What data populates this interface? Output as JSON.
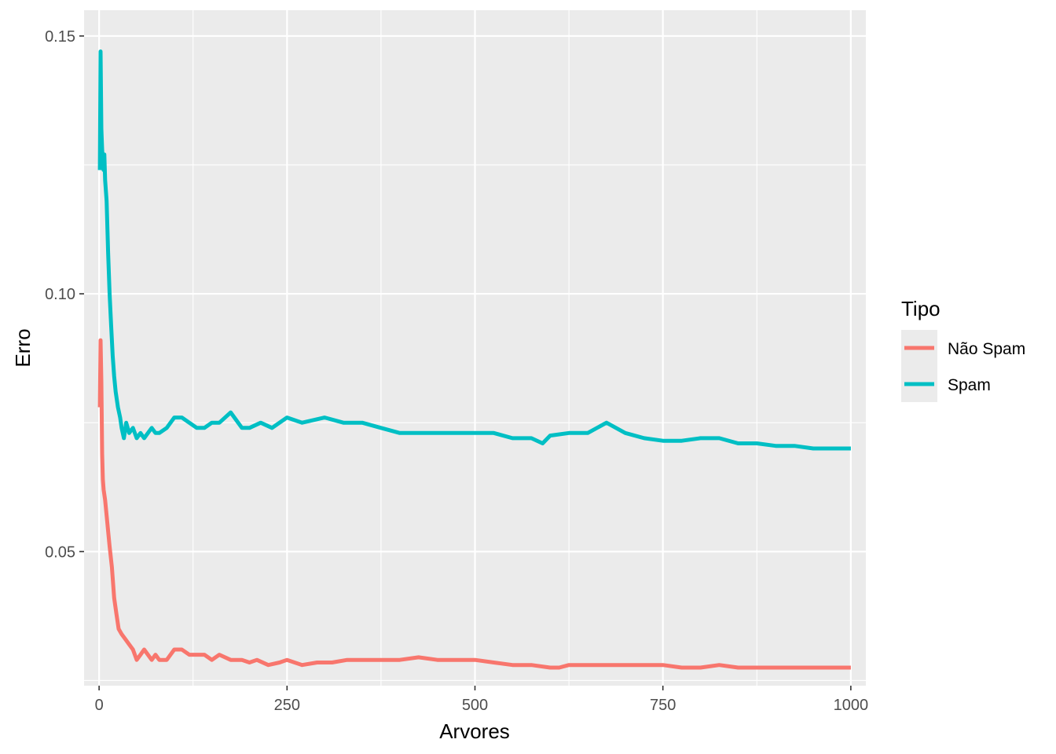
{
  "chart_data": {
    "type": "line",
    "title": "",
    "xlabel": "Arvores",
    "ylabel": "Erro",
    "xlim": [
      -20,
      1020
    ],
    "ylim": [
      0.024,
      0.155
    ],
    "x_ticks": [
      0,
      250,
      500,
      750,
      1000
    ],
    "x_tick_labels": [
      "0",
      "250",
      "500",
      "750",
      "1000"
    ],
    "y_ticks": [
      0.05,
      0.1,
      0.15
    ],
    "y_tick_labels": [
      "0.05",
      "0.10",
      "0.15"
    ],
    "grid": true,
    "legend": {
      "title": "Tipo",
      "position": "right"
    },
    "series": [
      {
        "name": "Não Spam",
        "color": "#F8766D",
        "x": [
          1,
          2,
          3,
          4,
          5,
          6,
          8,
          10,
          12,
          14,
          17,
          20,
          23,
          26,
          30,
          35,
          40,
          45,
          50,
          55,
          60,
          65,
          70,
          75,
          80,
          90,
          100,
          110,
          120,
          130,
          140,
          150,
          160,
          175,
          190,
          200,
          210,
          225,
          240,
          250,
          270,
          290,
          310,
          330,
          350,
          375,
          400,
          425,
          450,
          475,
          500,
          525,
          550,
          575,
          600,
          612,
          625,
          650,
          675,
          700,
          725,
          750,
          775,
          800,
          825,
          850,
          875,
          900,
          925,
          950,
          975,
          1000
        ],
        "values": [
          0.078,
          0.091,
          0.083,
          0.069,
          0.064,
          0.062,
          0.06,
          0.057,
          0.054,
          0.051,
          0.047,
          0.041,
          0.038,
          0.035,
          0.034,
          0.033,
          0.032,
          0.031,
          0.029,
          0.03,
          0.031,
          0.03,
          0.029,
          0.03,
          0.029,
          0.029,
          0.031,
          0.031,
          0.03,
          0.03,
          0.03,
          0.029,
          0.03,
          0.029,
          0.029,
          0.0285,
          0.029,
          0.028,
          0.0285,
          0.029,
          0.028,
          0.0285,
          0.0285,
          0.029,
          0.029,
          0.029,
          0.029,
          0.0295,
          0.029,
          0.029,
          0.029,
          0.0285,
          0.028,
          0.028,
          0.0275,
          0.0275,
          0.028,
          0.028,
          0.028,
          0.028,
          0.028,
          0.028,
          0.0275,
          0.0275,
          0.028,
          0.0275,
          0.0275,
          0.0275,
          0.0275,
          0.0275,
          0.0275,
          0.0275
        ]
      },
      {
        "name": "Spam",
        "color": "#00BFC4",
        "x": [
          1,
          2,
          3,
          4,
          5,
          6,
          7,
          8,
          10,
          12,
          14,
          16,
          18,
          20,
          22,
          25,
          28,
          30,
          33,
          36,
          40,
          45,
          50,
          55,
          60,
          65,
          70,
          75,
          80,
          90,
          100,
          110,
          120,
          130,
          140,
          150,
          160,
          175,
          190,
          200,
          215,
          230,
          250,
          270,
          300,
          325,
          350,
          375,
          400,
          425,
          450,
          475,
          500,
          525,
          550,
          575,
          590,
          600,
          625,
          650,
          675,
          700,
          725,
          750,
          775,
          800,
          825,
          850,
          875,
          900,
          925,
          950,
          975,
          1000
        ],
        "values": [
          0.124,
          0.147,
          0.132,
          0.128,
          0.126,
          0.124,
          0.127,
          0.122,
          0.118,
          0.108,
          0.1,
          0.094,
          0.088,
          0.084,
          0.081,
          0.078,
          0.076,
          0.074,
          0.072,
          0.075,
          0.073,
          0.074,
          0.072,
          0.073,
          0.072,
          0.073,
          0.074,
          0.073,
          0.073,
          0.074,
          0.076,
          0.076,
          0.075,
          0.074,
          0.074,
          0.075,
          0.075,
          0.077,
          0.074,
          0.074,
          0.075,
          0.074,
          0.076,
          0.075,
          0.076,
          0.075,
          0.075,
          0.074,
          0.073,
          0.073,
          0.073,
          0.073,
          0.073,
          0.073,
          0.072,
          0.072,
          0.071,
          0.0725,
          0.073,
          0.073,
          0.075,
          0.073,
          0.072,
          0.0715,
          0.0715,
          0.072,
          0.072,
          0.071,
          0.071,
          0.0705,
          0.0705,
          0.07,
          0.07,
          0.07
        ]
      }
    ]
  }
}
